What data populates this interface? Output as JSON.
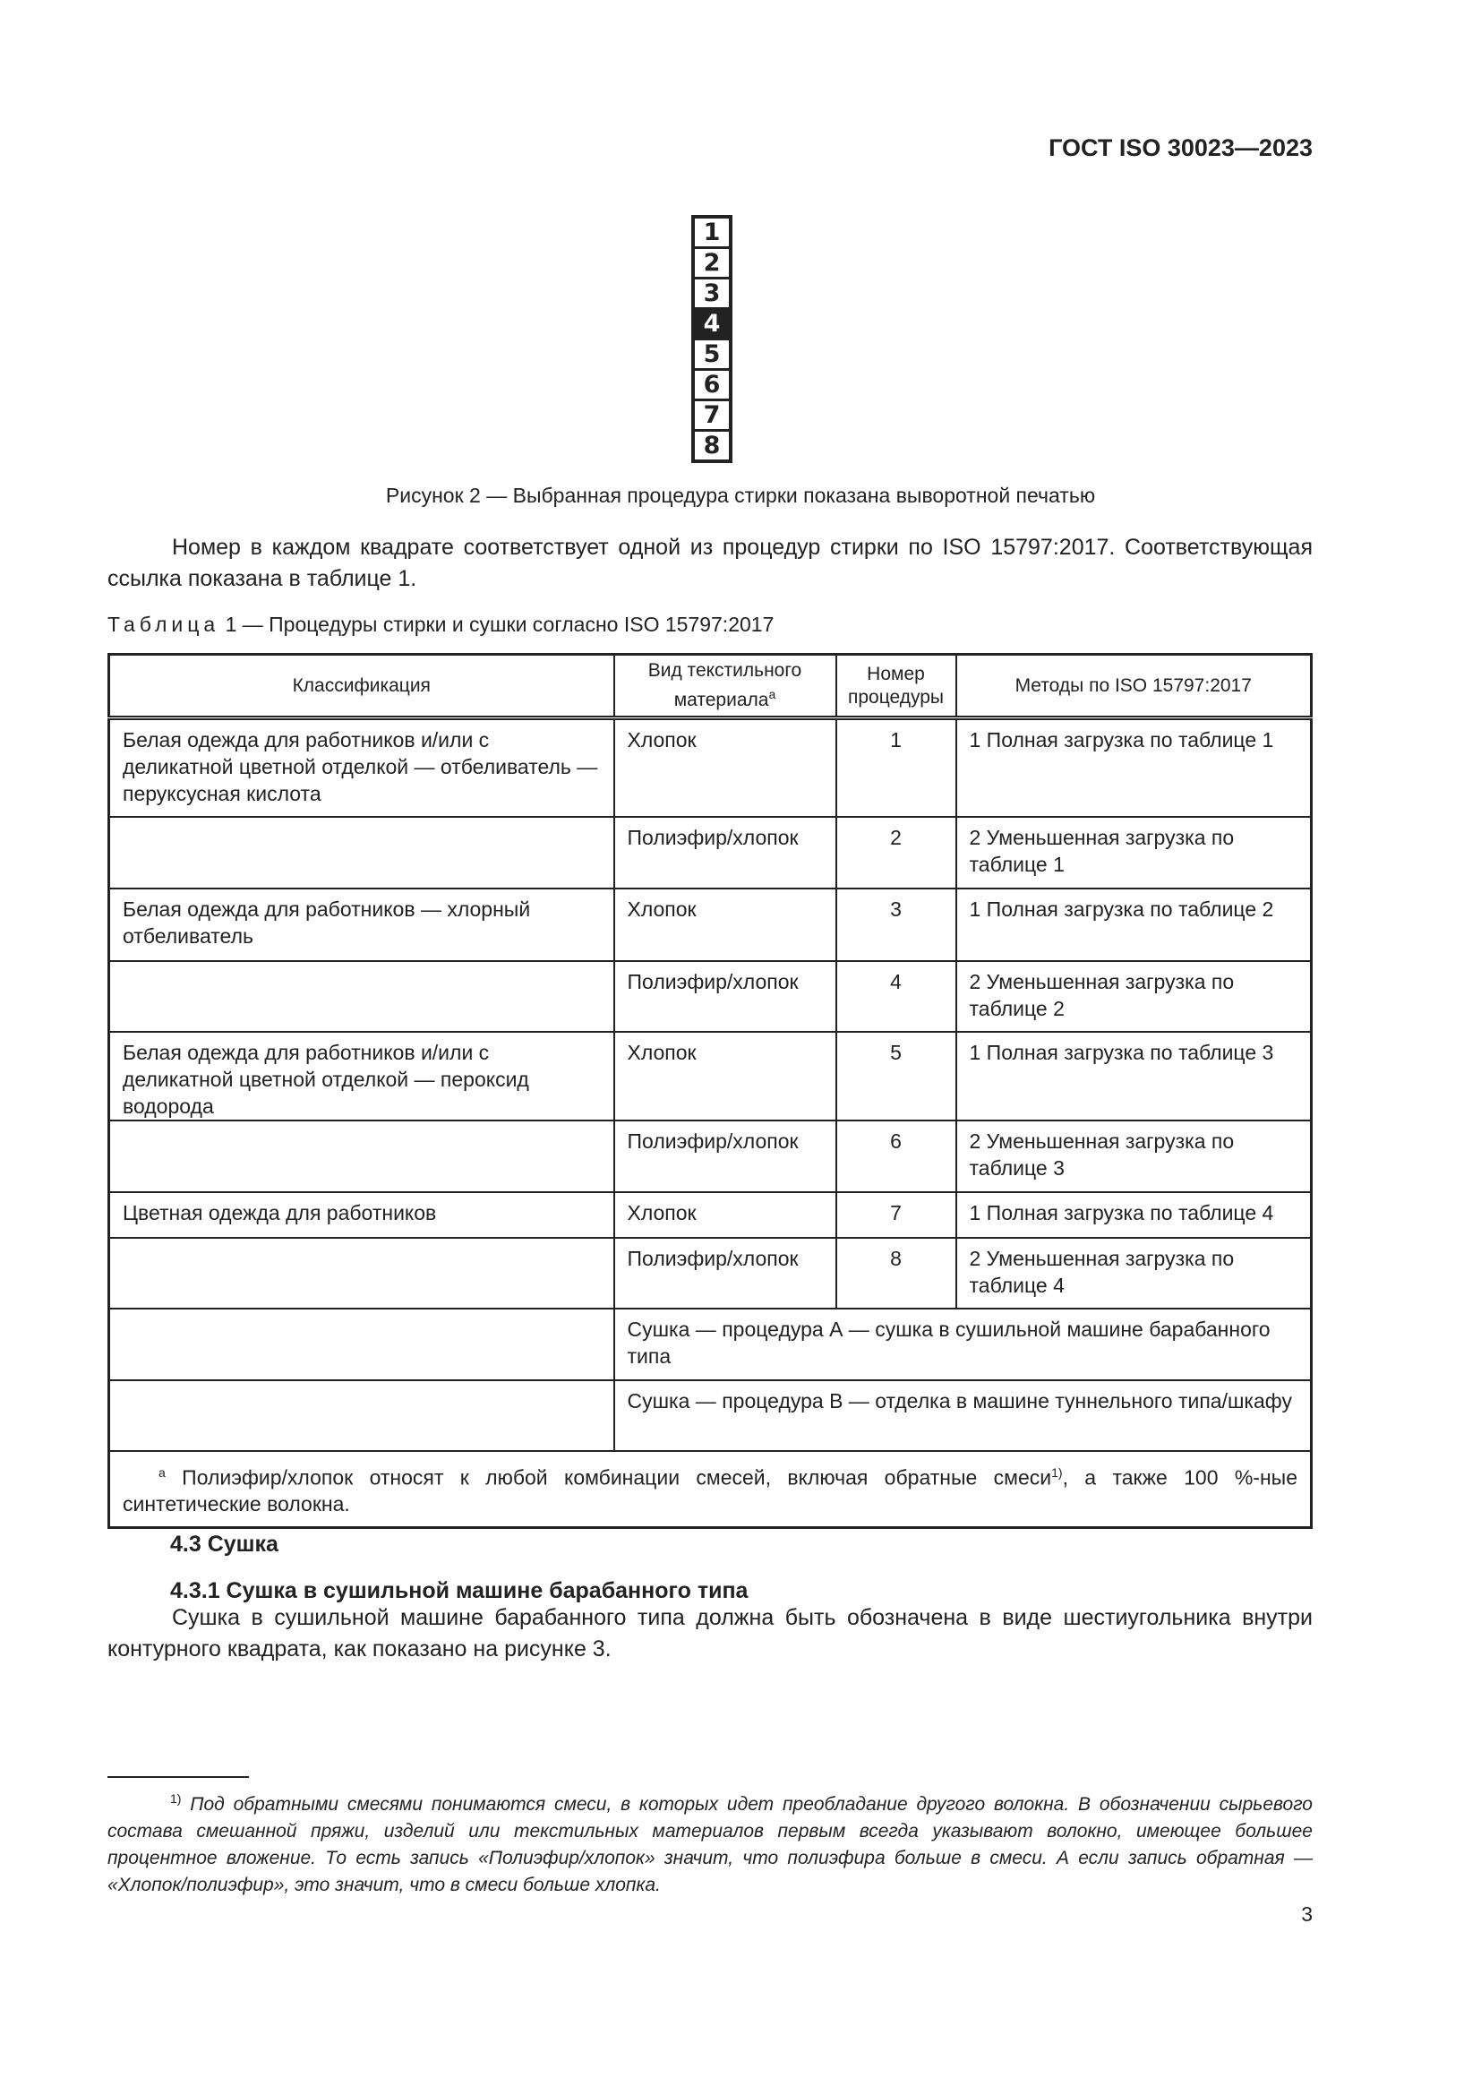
{
  "header": {
    "doc_id": "ГОСТ ISO 30023—2023"
  },
  "figure": {
    "numbers": [
      "1",
      "2",
      "3",
      "4",
      "5",
      "6",
      "7",
      "8"
    ],
    "highlighted": "4",
    "caption": "Рисунок 2 — Выбранная процедура стирки показана выворотной печатью"
  },
  "intro_paragraph": "Номер в каждом квадрате соответствует одной из процедур стирки по ISO 15797:2017. Соответствующая ссылка показана в таблице 1.",
  "table": {
    "caption_prefix": "Таблица",
    "caption_rest": "1 — Процедуры стирки и сушки согласно ISO 15797:2017",
    "headers": {
      "classification": "Классификация",
      "material": "Вид текстильного материала",
      "material_sup": "a",
      "number": "Номер процедуры",
      "methods": "Методы по ISO 15797:2017"
    },
    "rows": [
      {
        "classification": "Белая одежда для работников и/или с деликатной цветной отделкой — отбеливатель — перуксусная кислота",
        "material": "Хлопок",
        "number": "1",
        "method": "1 Полная загрузка по таблице 1"
      },
      {
        "classification": "",
        "material": "Полиэфир/хлопок",
        "number": "2",
        "method": "2 Уменьшенная загрузка по таблице 1"
      },
      {
        "classification": "Белая одежда для работников — хлорный отбеливатель",
        "material": "Хлопок",
        "number": "3",
        "method": "1 Полная загрузка по таблице 2"
      },
      {
        "classification": "",
        "material": "Полиэфир/хлопок",
        "number": "4",
        "method": "2 Уменьшенная загрузка по таблице 2"
      },
      {
        "classification": "Белая одежда для работников и/или с деликатной цветной отделкой — пероксид водорода",
        "material": "Хлопок",
        "number": "5",
        "method": "1 Полная загрузка по таблице 3"
      },
      {
        "classification": "",
        "material": "Полиэфир/хлопок",
        "number": "6",
        "method": "2 Уменьшенная загрузка по таблице 3"
      },
      {
        "classification": "Цветная одежда для работников",
        "material": "Хлопок",
        "number": "7",
        "method": "1 Полная загрузка по таблице 4"
      },
      {
        "classification": "",
        "material": "Полиэфир/хлопок",
        "number": "8",
        "method": "2 Уменьшенная загрузка по таблице 4"
      }
    ],
    "drying_rows": [
      "Сушка — процедура А — сушка в сушильной машине барабанного типа",
      "Сушка — процедура В — отделка в машине туннельного типа/шкафу"
    ],
    "note_marker": "a",
    "note_part1": "Полиэфир/хлопок относят к любой комбинации смесей, включая обратные смеси",
    "note_ref": "1)",
    "note_part2": ", а также 100 %-ные синтетические волокна."
  },
  "section_4_3": {
    "title": "4.3 Сушка"
  },
  "section_4_3_1": {
    "title": "4.3.1 Сушка в сушильной машине барабанного типа",
    "text": "Сушка в сушильной машине барабанного типа должна быть обозначена в виде шестиугольника внутри контурного квадрата, как показано на рисунке 3."
  },
  "footnote": {
    "marker": "1)",
    "text": "Под обратными смесями понимаются смеси, в которых идет преобладание другого волокна. В обозначении сырьевого состава смешанной пряжи, изделий или текстильных материалов первым всегда указывают волокно, имеющее большее процентное вложение. То есть запись «Полиэфир/хлопок» значит, что полиэфира больше в смеси. А если запись обратная — «Хлопок/полиэфир», это значит, что в смеси больше хлопка."
  },
  "page_number": "3"
}
